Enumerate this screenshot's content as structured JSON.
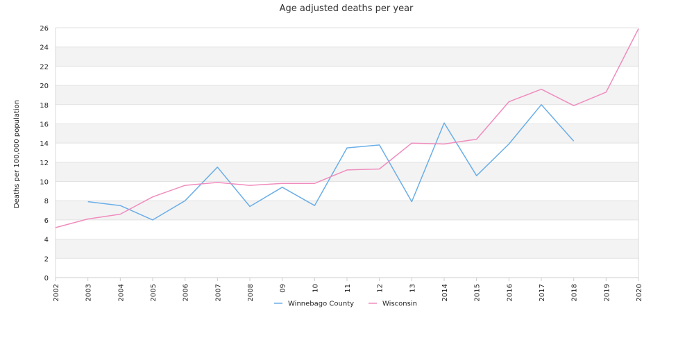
{
  "chart_data": {
    "type": "line",
    "title": "Age adjusted deaths per year",
    "ylabel": "Deaths per 100,000 population",
    "xlabel": "",
    "categories": [
      "2002",
      "2003",
      "2004",
      "2005",
      "2006",
      "2007",
      "2008",
      "09",
      "10",
      "11",
      "12",
      "13",
      "2014",
      "2015",
      "2016",
      "2017",
      "2018",
      "2019",
      "2020"
    ],
    "ylim": [
      0,
      26
    ],
    "yticks": [
      0,
      2,
      4,
      6,
      8,
      10,
      12,
      14,
      16,
      18,
      20,
      22,
      24,
      26
    ],
    "grid": "horizontal bands",
    "legend_position": "bottom",
    "series": [
      {
        "name": "Winnebago County",
        "color": "#6aaee8",
        "values": [
          null,
          7.9,
          7.5,
          6.0,
          8.0,
          11.5,
          7.4,
          9.4,
          7.5,
          13.5,
          13.8,
          7.9,
          16.1,
          10.6,
          13.9,
          18.0,
          14.2,
          null,
          null
        ]
      },
      {
        "name": "Wisconsin",
        "color": "#f08cbe",
        "values": [
          5.2,
          6.1,
          6.6,
          8.4,
          9.6,
          9.9,
          9.6,
          9.8,
          9.8,
          11.2,
          11.3,
          14.0,
          13.9,
          14.4,
          18.3,
          19.6,
          17.9,
          19.3,
          25.9
        ]
      }
    ]
  }
}
